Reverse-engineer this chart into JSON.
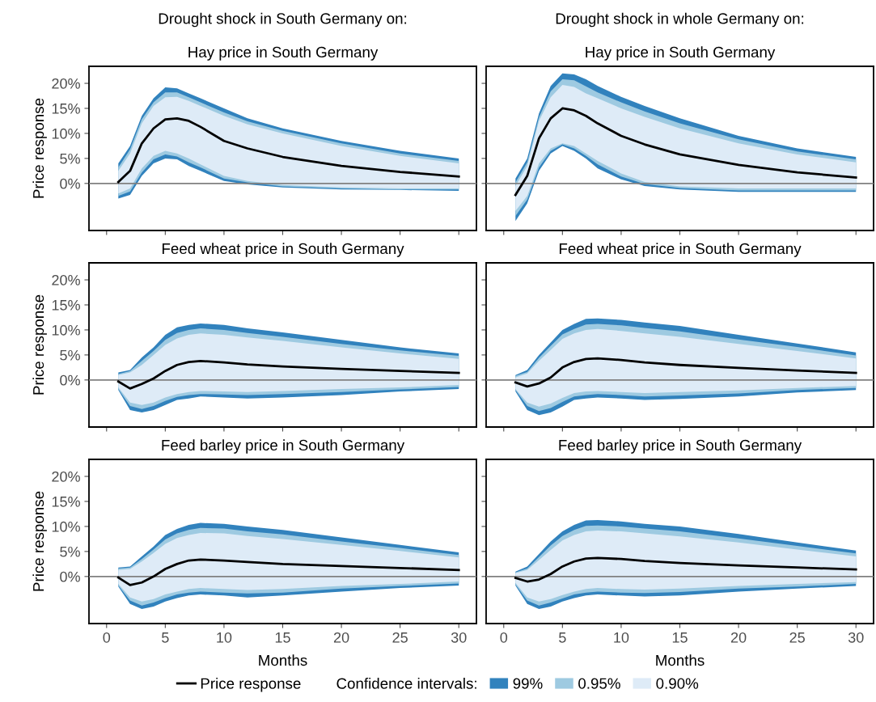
{
  "chart_data": [
    {
      "type": "line",
      "title": "Drought shock in South Germany on:",
      "subtitle": "Hay price in South Germany",
      "ylabel": "Price response",
      "x": [
        1,
        2,
        3,
        4,
        5,
        6,
        7,
        8,
        10,
        12,
        15,
        20,
        25,
        30
      ],
      "xlim": [
        -1.5,
        31.5
      ],
      "xticks": [
        0,
        5,
        10,
        15,
        20,
        25,
        30
      ],
      "ylim": [
        -9.4,
        23.4
      ],
      "yticks": [
        {
          "value": 0,
          "label": "0%"
        },
        {
          "value": 5,
          "label": "5%"
        },
        {
          "value": 10,
          "label": "10%"
        },
        {
          "value": 15,
          "label": "15%"
        },
        {
          "value": 20,
          "label": "20%"
        }
      ],
      "tick_labels": "y",
      "ref_lines": [
        {
          "axis": "y",
          "value": 0,
          "color": "#808080"
        }
      ],
      "series": [
        {
          "color": "#3182bd",
          "values": [
            null,
            null,
            null,
            null,
            null,
            null,
            null,
            null,
            null,
            null,
            null,
            null,
            null,
            null
          ],
          "lower": [
            -3,
            -2.3,
            1.5,
            4,
            5,
            4.8,
            3.5,
            2.5,
            0.5,
            -0.2,
            -0.8,
            -1.2,
            -1.3,
            -1.5
          ],
          "upper": [
            4,
            7.5,
            13.5,
            17,
            19.2,
            19,
            18,
            17,
            15,
            13,
            11,
            8.5,
            6.5,
            5
          ]
        },
        {
          "color": "#9ecae1",
          "values": [
            null,
            null,
            null,
            null,
            null,
            null,
            null,
            null,
            null,
            null,
            null,
            null,
            null,
            null
          ],
          "lower": [
            -2.5,
            -1.6,
            2.2,
            4.8,
            5.8,
            5.4,
            4.2,
            3.2,
            1,
            0.2,
            -0.6,
            -1,
            -1.2,
            -1.2
          ],
          "upper": [
            3.2,
            6.8,
            12.8,
            16.2,
            18.2,
            18.2,
            17.2,
            16.2,
            14.2,
            12.4,
            10.5,
            8,
            6,
            4.5
          ]
        },
        {
          "color": "#deebf7",
          "values": [
            null,
            null,
            null,
            null,
            null,
            null,
            null,
            null,
            null,
            null,
            null,
            null,
            null,
            null
          ],
          "lower": [
            -2,
            -1,
            3,
            5.5,
            6.5,
            6,
            5,
            3.8,
            1.5,
            0.5,
            -0.3,
            -0.8,
            -1,
            -1
          ],
          "upper": [
            2.5,
            6,
            12,
            15.5,
            17.2,
            17.3,
            16.5,
            15.5,
            13.5,
            11.8,
            10,
            7.5,
            5.5,
            4
          ]
        },
        {
          "color": "#000000",
          "values": [
            0.3,
            2.5,
            8,
            11,
            12.8,
            13,
            12.5,
            11.3,
            8.5,
            7,
            5.3,
            3.5,
            2.3,
            1.4
          ]
        }
      ]
    },
    {
      "type": "line",
      "title": "Drought shock in whole Germany on:",
      "subtitle": "Hay price in South Germany",
      "x": [
        1,
        2,
        3,
        4,
        5,
        6,
        7,
        8,
        10,
        12,
        15,
        20,
        25,
        30
      ],
      "xlim": [
        -1.5,
        31.5
      ],
      "xticks": [
        0,
        5,
        10,
        15,
        20,
        25,
        30
      ],
      "ylim": [
        -9.4,
        23.4
      ],
      "yticks": [
        {
          "value": 0,
          "label": null
        },
        {
          "value": 5,
          "label": null
        },
        {
          "value": 10,
          "label": null
        },
        {
          "value": 15,
          "label": null
        },
        {
          "value": 20,
          "label": null
        }
      ],
      "tick_labels": false,
      "ref_lines": [
        {
          "axis": "y",
          "value": 0,
          "color": "#808080"
        }
      ],
      "series": [
        {
          "color": "#3182bd",
          "values": [
            null,
            null,
            null,
            null,
            null,
            null,
            null,
            null,
            null,
            null,
            null,
            null,
            null,
            null
          ],
          "lower": [
            -7.5,
            -4,
            2.5,
            6,
            7.5,
            6.5,
            5,
            3,
            0.8,
            -0.5,
            -1.2,
            -1.7,
            -1.7,
            -1.7
          ],
          "upper": [
            1,
            5,
            14,
            19.5,
            22,
            21.8,
            20.8,
            19.5,
            17.3,
            15.5,
            13,
            9.5,
            7,
            5.3
          ]
        },
        {
          "color": "#9ecae1",
          "values": [
            null,
            null,
            null,
            null,
            null,
            null,
            null,
            null,
            null,
            null,
            null,
            null,
            null,
            null
          ],
          "lower": [
            -6.5,
            -3.2,
            3.2,
            6.5,
            7.8,
            7,
            5.5,
            3.8,
            1.4,
            -0.1,
            -0.9,
            -1.4,
            -1.4,
            -1.4
          ],
          "upper": [
            0.2,
            4.2,
            13.2,
            18.4,
            20.8,
            20.6,
            19.4,
            18.2,
            16.2,
            14.4,
            12,
            8.8,
            6.4,
            4.8
          ]
        },
        {
          "color": "#deebf7",
          "values": [
            null,
            null,
            null,
            null,
            null,
            null,
            null,
            null,
            null,
            null,
            null,
            null,
            null,
            null
          ],
          "lower": [
            -5.5,
            -2.5,
            4,
            7,
            8,
            7.5,
            6,
            4.5,
            2,
            0.3,
            -0.6,
            -1,
            -1,
            -1
          ],
          "upper": [
            -0.5,
            3.5,
            12.5,
            17.2,
            19.7,
            19.3,
            18,
            17,
            15,
            13.3,
            11,
            8,
            5.8,
            4.2
          ]
        },
        {
          "color": "#000000",
          "values": [
            -2.3,
            1.5,
            9,
            13,
            15,
            14.6,
            13.5,
            12,
            9.5,
            7.8,
            5.8,
            3.7,
            2.2,
            1.2
          ]
        }
      ]
    },
    {
      "type": "line",
      "title": "Feed wheat price in South Germany",
      "ylabel": "Price response",
      "x": [
        1,
        2,
        3,
        4,
        5,
        6,
        7,
        8,
        10,
        12,
        15,
        20,
        25,
        30
      ],
      "xlim": [
        -1.5,
        31.5
      ],
      "xticks": [
        0,
        5,
        10,
        15,
        20,
        25,
        30
      ],
      "ylim": [
        -9.4,
        23.4
      ],
      "yticks": [
        {
          "value": 0,
          "label": "0%"
        },
        {
          "value": 5,
          "label": "5%"
        },
        {
          "value": 10,
          "label": "10%"
        },
        {
          "value": 15,
          "label": "15%"
        },
        {
          "value": 20,
          "label": "20%"
        }
      ],
      "tick_labels": "y",
      "ref_lines": [
        {
          "axis": "y",
          "value": 0,
          "color": "#808080"
        }
      ],
      "series": [
        {
          "color": "#3182bd",
          "values": [
            null,
            null,
            null,
            null,
            null,
            null,
            null,
            null,
            null,
            null,
            null,
            null,
            null,
            null
          ],
          "lower": [
            -2,
            -6,
            -6.5,
            -6,
            -5,
            -4,
            -3.7,
            -3.3,
            -3.5,
            -3.7,
            -3.5,
            -3,
            -2.3,
            -1.8
          ],
          "upper": [
            1.5,
            2,
            4.5,
            6.5,
            9,
            10.5,
            11,
            11.3,
            11,
            10.3,
            9.5,
            8,
            6.5,
            5.3
          ]
        },
        {
          "color": "#9ecae1",
          "values": [
            null,
            null,
            null,
            null,
            null,
            null,
            null,
            null,
            null,
            null,
            null,
            null,
            null,
            null
          ],
          "lower": [
            -1.8,
            -5.2,
            -5.8,
            -5.2,
            -4.2,
            -3.4,
            -3,
            -2.8,
            -2.9,
            -3,
            -2.8,
            -2.4,
            -1.9,
            -1.4
          ],
          "upper": [
            1.2,
            1.8,
            3.8,
            5.8,
            8,
            9.4,
            10,
            10.3,
            10,
            9.4,
            8.6,
            7.2,
            5.9,
            4.8
          ]
        },
        {
          "color": "#deebf7",
          "values": [
            null,
            null,
            null,
            null,
            null,
            null,
            null,
            null,
            null,
            null,
            null,
            null,
            null,
            null
          ],
          "lower": [
            -1.5,
            -4.5,
            -5,
            -4.5,
            -3.5,
            -2.8,
            -2.4,
            -2.2,
            -2.3,
            -2.4,
            -2.2,
            -1.8,
            -1.5,
            -1
          ],
          "upper": [
            1,
            1.5,
            3,
            5,
            7,
            8.3,
            9,
            9.3,
            9,
            8.5,
            7.8,
            6.5,
            5.3,
            4.2
          ]
        },
        {
          "color": "#000000",
          "values": [
            -0.3,
            -1.7,
            -0.8,
            0.3,
            1.8,
            3,
            3.6,
            3.8,
            3.5,
            3.1,
            2.7,
            2.2,
            1.8,
            1.4
          ]
        }
      ]
    },
    {
      "type": "line",
      "title": "Feed wheat price in South Germany",
      "x": [
        1,
        2,
        3,
        4,
        5,
        6,
        7,
        8,
        10,
        12,
        15,
        20,
        25,
        30
      ],
      "xlim": [
        -1.5,
        31.5
      ],
      "xticks": [
        0,
        5,
        10,
        15,
        20,
        25,
        30
      ],
      "ylim": [
        -9.4,
        23.4
      ],
      "yticks": [
        {
          "value": 0,
          "label": null
        },
        {
          "value": 5,
          "label": null
        },
        {
          "value": 10,
          "label": null
        },
        {
          "value": 15,
          "label": null
        },
        {
          "value": 20,
          "label": null
        }
      ],
      "tick_labels": false,
      "ref_lines": [
        {
          "axis": "y",
          "value": 0,
          "color": "#808080"
        }
      ],
      "series": [
        {
          "color": "#3182bd",
          "values": [
            null,
            null,
            null,
            null,
            null,
            null,
            null,
            null,
            null,
            null,
            null,
            null,
            null,
            null
          ],
          "lower": [
            -2.3,
            -6,
            -7,
            -6.5,
            -5.3,
            -4,
            -3.7,
            -3.5,
            -3.7,
            -4,
            -3.8,
            -3.3,
            -2.5,
            -2
          ],
          "upper": [
            1,
            2,
            5,
            7.5,
            10,
            11.2,
            12.2,
            12.3,
            12,
            11.5,
            10.8,
            9,
            7.3,
            5.5
          ]
        },
        {
          "color": "#9ecae1",
          "values": [
            null,
            null,
            null,
            null,
            null,
            null,
            null,
            null,
            null,
            null,
            null,
            null,
            null,
            null
          ],
          "lower": [
            -2,
            -5.2,
            -6.2,
            -5.6,
            -4.4,
            -3.3,
            -3,
            -2.8,
            -3,
            -3.3,
            -3.1,
            -2.7,
            -2,
            -1.6
          ],
          "upper": [
            0.8,
            1.6,
            4.4,
            6.8,
            9.1,
            10.2,
            11.1,
            11.2,
            10.9,
            10.4,
            9.7,
            8.1,
            6.6,
            4.9
          ]
        },
        {
          "color": "#deebf7",
          "values": [
            null,
            null,
            null,
            null,
            null,
            null,
            null,
            null,
            null,
            null,
            null,
            null,
            null,
            null
          ],
          "lower": [
            -1.8,
            -4.5,
            -5.3,
            -4.7,
            -3.6,
            -2.6,
            -2.3,
            -2.2,
            -2.4,
            -2.6,
            -2.4,
            -2.1,
            -1.6,
            -1.2
          ],
          "upper": [
            0.5,
            1.3,
            3.8,
            6,
            8.2,
            9.3,
            10,
            10.2,
            9.8,
            9.3,
            8.6,
            7.2,
            5.8,
            4.3
          ]
        },
        {
          "color": "#000000",
          "values": [
            -0.5,
            -1.3,
            -0.7,
            0.5,
            2.5,
            3.6,
            4.2,
            4.3,
            4,
            3.5,
            3,
            2.4,
            1.9,
            1.4
          ]
        }
      ]
    },
    {
      "type": "line",
      "title": "Feed barley price in South Germany",
      "xlabel": "Months",
      "ylabel": "Price response",
      "x": [
        1,
        2,
        3,
        4,
        5,
        6,
        7,
        8,
        10,
        12,
        15,
        20,
        25,
        30
      ],
      "xlim": [
        -1.5,
        31.5
      ],
      "xticks": [
        0,
        5,
        10,
        15,
        20,
        25,
        30
      ],
      "ylim": [
        -9.4,
        23.4
      ],
      "yticks": [
        {
          "value": 0,
          "label": "0%"
        },
        {
          "value": 5,
          "label": "5%"
        },
        {
          "value": 10,
          "label": "10%"
        },
        {
          "value": 15,
          "label": "15%"
        },
        {
          "value": 20,
          "label": "20%"
        }
      ],
      "ref_lines": [
        {
          "axis": "y",
          "value": 0,
          "color": "#808080"
        }
      ],
      "series": [
        {
          "color": "#3182bd",
          "values": [
            null,
            null,
            null,
            null,
            null,
            null,
            null,
            null,
            null,
            null,
            null,
            null,
            null,
            null
          ],
          "lower": [
            -2,
            -5.5,
            -6.5,
            -6,
            -5,
            -4.3,
            -3.8,
            -3.6,
            -3.8,
            -4.2,
            -3.8,
            -3,
            -2.3,
            -1.8
          ],
          "upper": [
            1.8,
            2,
            4,
            6,
            8.3,
            9.5,
            10.3,
            10.7,
            10.5,
            10,
            9.3,
            7.8,
            6.3,
            4.8
          ]
        },
        {
          "color": "#9ecae1",
          "values": [
            null,
            null,
            null,
            null,
            null,
            null,
            null,
            null,
            null,
            null,
            null,
            null,
            null,
            null
          ],
          "lower": [
            -1.8,
            -4.8,
            -5.8,
            -5.2,
            -4.3,
            -3.6,
            -3.2,
            -3,
            -3.2,
            -3.4,
            -3.2,
            -2.4,
            -1.9,
            -1.4
          ],
          "upper": [
            1.6,
            1.8,
            3.5,
            5.4,
            7.4,
            8.6,
            9.3,
            9.7,
            9.6,
            9,
            8.4,
            7,
            5.7,
            4.3
          ]
        },
        {
          "color": "#deebf7",
          "values": [
            null,
            null,
            null,
            null,
            null,
            null,
            null,
            null,
            null,
            null,
            null,
            null,
            null,
            null
          ],
          "lower": [
            -1.5,
            -4.2,
            -5,
            -4.5,
            -3.6,
            -3,
            -2.5,
            -2.3,
            -2.5,
            -2.7,
            -2.5,
            -1.9,
            -1.5,
            -1
          ],
          "upper": [
            1.3,
            1.5,
            3,
            4.7,
            6.5,
            7.7,
            8.3,
            8.7,
            8.6,
            8.1,
            7.5,
            6.3,
            5.1,
            3.8
          ]
        },
        {
          "color": "#000000",
          "values": [
            -0.2,
            -1.7,
            -1.2,
            0,
            1.5,
            2.5,
            3.2,
            3.4,
            3.2,
            2.9,
            2.5,
            2.1,
            1.7,
            1.3
          ]
        }
      ]
    },
    {
      "type": "line",
      "title": "Feed barley price in South Germany",
      "xlabel": "Months",
      "x": [
        1,
        2,
        3,
        4,
        5,
        6,
        7,
        8,
        10,
        12,
        15,
        20,
        25,
        30
      ],
      "xlim": [
        -1.5,
        31.5
      ],
      "xticks": [
        0,
        5,
        10,
        15,
        20,
        25,
        30
      ],
      "ylim": [
        -9.4,
        23.4
      ],
      "yticks": [
        {
          "value": 0,
          "label": null
        },
        {
          "value": 5,
          "label": null
        },
        {
          "value": 10,
          "label": null
        },
        {
          "value": 15,
          "label": null
        },
        {
          "value": 20,
          "label": null
        }
      ],
      "tick_labels": "x",
      "ref_lines": [
        {
          "axis": "y",
          "value": 0,
          "color": "#808080"
        }
      ],
      "legend": "bottom",
      "legend_title": "Confidence intervals:",
      "series": [
        {
          "name": "99%",
          "color": "#3182bd",
          "values": [
            null,
            null,
            null,
            null,
            null,
            null,
            null,
            null,
            null,
            null,
            null,
            null,
            null,
            null
          ],
          "lower": [
            -1.8,
            -5.5,
            -6.5,
            -6,
            -5,
            -4.3,
            -3.8,
            -3.6,
            -3.8,
            -4,
            -3.8,
            -3,
            -2.4,
            -1.9
          ],
          "upper": [
            1,
            2,
            4.5,
            7,
            9,
            10.3,
            11.2,
            11.3,
            11,
            10.5,
            10,
            8.5,
            6.8,
            5.2
          ]
        },
        {
          "name": "0.95%",
          "color": "#9ecae1",
          "values": [
            null,
            null,
            null,
            null,
            null,
            null,
            null,
            null,
            null,
            null,
            null,
            null,
            null,
            null
          ],
          "lower": [
            -1.6,
            -4.8,
            -5.8,
            -5.2,
            -4.4,
            -3.6,
            -3.2,
            -3,
            -3.2,
            -3.3,
            -3.1,
            -2.4,
            -2,
            -1.5
          ],
          "upper": [
            0.8,
            1.6,
            3.9,
            6.2,
            8.1,
            9.3,
            10.1,
            10.2,
            10,
            9.6,
            9,
            7.6,
            6.1,
            4.6
          ]
        },
        {
          "name": "0.90%",
          "color": "#deebf7",
          "values": [
            null,
            null,
            null,
            null,
            null,
            null,
            null,
            null,
            null,
            null,
            null,
            null,
            null,
            null
          ],
          "lower": [
            -1.3,
            -4.2,
            -5,
            -4.5,
            -3.7,
            -3,
            -2.5,
            -2.3,
            -2.5,
            -2.6,
            -2.4,
            -1.9,
            -1.5,
            -1.1
          ],
          "upper": [
            0.7,
            1.3,
            3.3,
            5.3,
            7.2,
            8.3,
            9,
            9.2,
            9,
            8.6,
            8,
            6.8,
            5.4,
            4
          ]
        },
        {
          "name": "Price response",
          "color": "#000000",
          "values": [
            -0.3,
            -1,
            -0.6,
            0.5,
            2,
            3,
            3.6,
            3.7,
            3.5,
            3.1,
            2.7,
            2.2,
            1.8,
            1.4
          ]
        }
      ]
    }
  ]
}
